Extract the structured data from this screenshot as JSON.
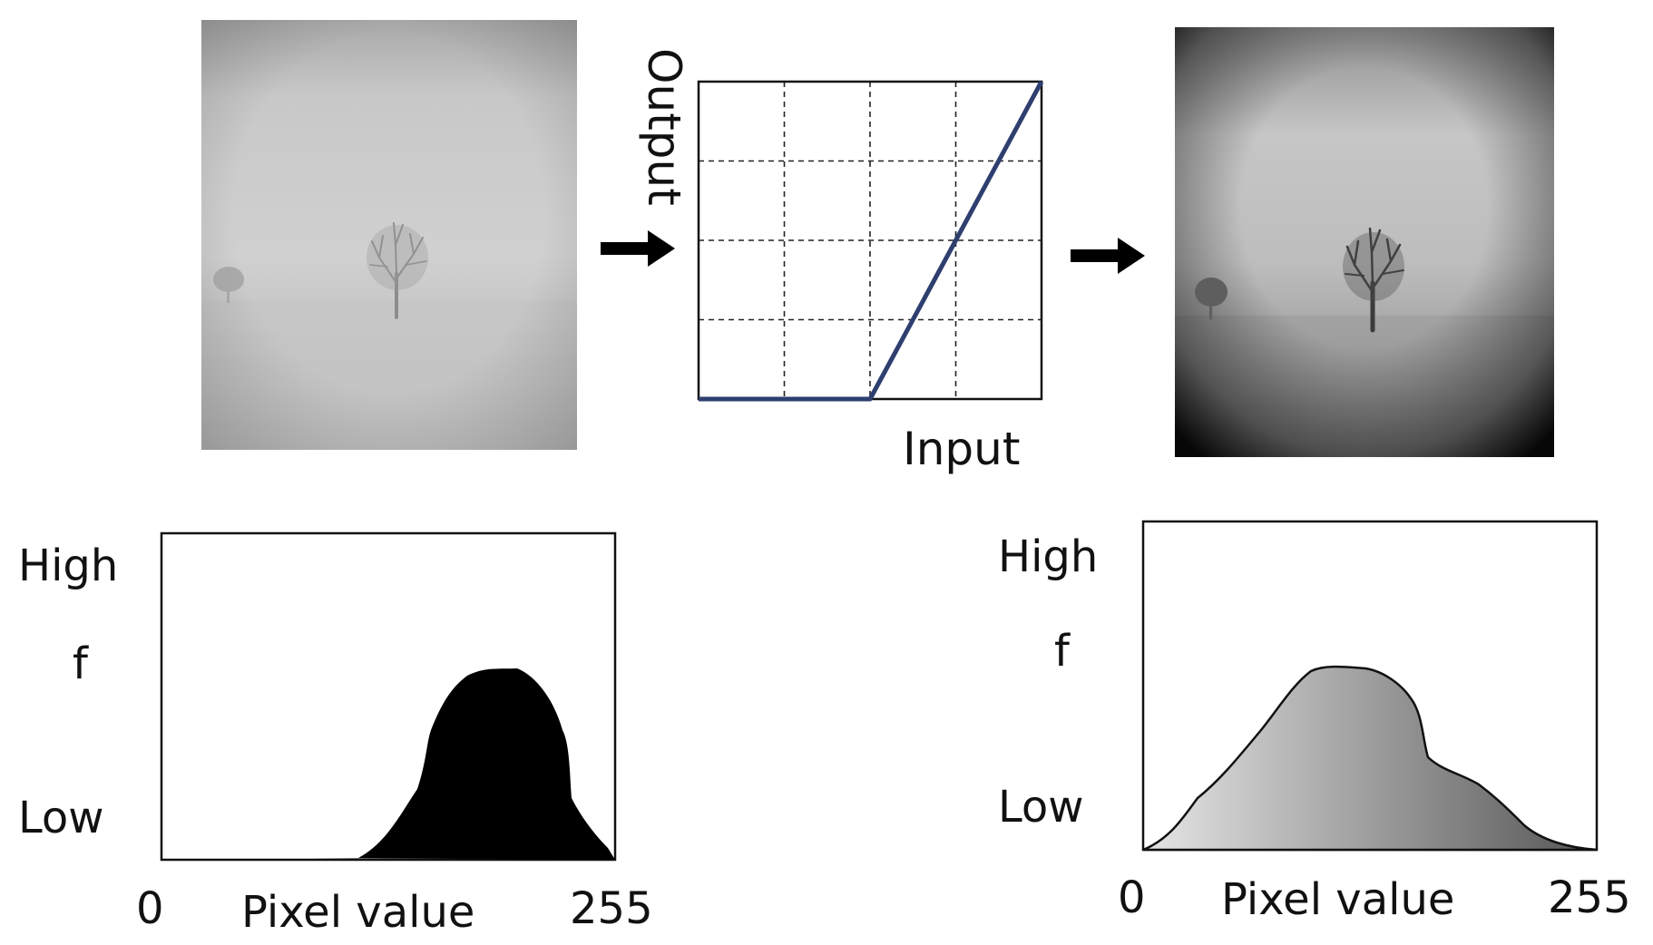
{
  "curve": {
    "xlabel": "Input",
    "ylabel": "Output",
    "grid_divisions": 4,
    "points": [
      [
        0,
        0
      ],
      [
        0.5,
        0
      ],
      [
        1,
        1
      ]
    ],
    "line_color": "#2e3f6f"
  },
  "arrows": [
    "right-arrow-icon",
    "right-arrow-icon"
  ],
  "histogram_left": {
    "ylabel_high": "High",
    "ylabel_mid": "f",
    "ylabel_low": "Low",
    "xlabel": "Pixel value",
    "x_min_label": "0",
    "x_max_label": "255",
    "fill": "#000000"
  },
  "histogram_right": {
    "ylabel_high": "High",
    "ylabel_mid": "f",
    "ylabel_low": "Low",
    "xlabel": "Pixel value",
    "x_min_label": "0",
    "x_max_label": "255",
    "fill_from": "#e6e6e6",
    "fill_to": "#555555"
  }
}
